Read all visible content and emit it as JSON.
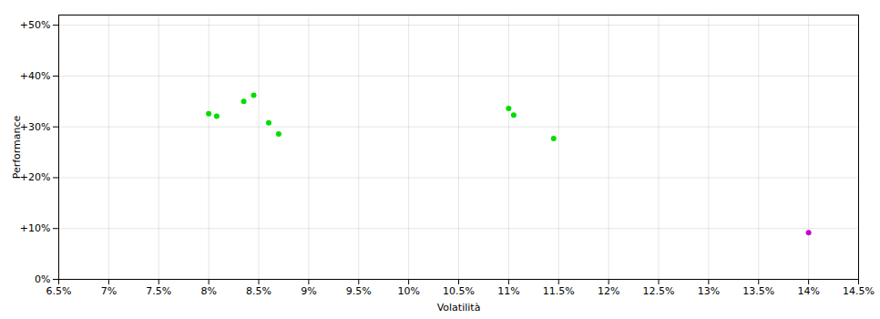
{
  "chart_data": {
    "type": "scatter",
    "xlabel": "Volatilità",
    "ylabel": "Performance",
    "xlim": [
      0.065,
      0.145
    ],
    "ylim": [
      0.0,
      0.52
    ],
    "xticks": [
      {
        "value": 0.065,
        "label": "6.5%"
      },
      {
        "value": 0.07,
        "label": "7%"
      },
      {
        "value": 0.075,
        "label": "7.5%"
      },
      {
        "value": 0.08,
        "label": "8%"
      },
      {
        "value": 0.085,
        "label": "8.5%"
      },
      {
        "value": 0.09,
        "label": "9%"
      },
      {
        "value": 0.095,
        "label": "9.5%"
      },
      {
        "value": 0.1,
        "label": "10%"
      },
      {
        "value": 0.105,
        "label": "10.5%"
      },
      {
        "value": 0.11,
        "label": "11%"
      },
      {
        "value": 0.115,
        "label": "11.5%"
      },
      {
        "value": 0.12,
        "label": "12%"
      },
      {
        "value": 0.125,
        "label": "12.5%"
      },
      {
        "value": 0.13,
        "label": "13%"
      },
      {
        "value": 0.135,
        "label": "13.5%"
      },
      {
        "value": 0.14,
        "label": "14%"
      },
      {
        "value": 0.145,
        "label": "14.5%"
      }
    ],
    "yticks": [
      {
        "value": 0.0,
        "label": "0%"
      },
      {
        "value": 0.1,
        "label": "+10%"
      },
      {
        "value": 0.2,
        "label": "+20%"
      },
      {
        "value": 0.3,
        "label": "+30%"
      },
      {
        "value": 0.4,
        "label": "+40%"
      },
      {
        "value": 0.5,
        "label": "+50%"
      }
    ],
    "grid": true,
    "series": [
      {
        "color": "#00dd00",
        "x": [
          0.08,
          0.0808,
          0.0835,
          0.0845,
          0.086,
          0.087,
          0.11,
          0.1105,
          0.1145
        ],
        "values": [
          0.326,
          0.321,
          0.35,
          0.362,
          0.308,
          0.286,
          0.336,
          0.323,
          0.277
        ]
      },
      {
        "color": "#cc00cc",
        "x": [
          0.14
        ],
        "values": [
          0.092
        ]
      }
    ]
  }
}
